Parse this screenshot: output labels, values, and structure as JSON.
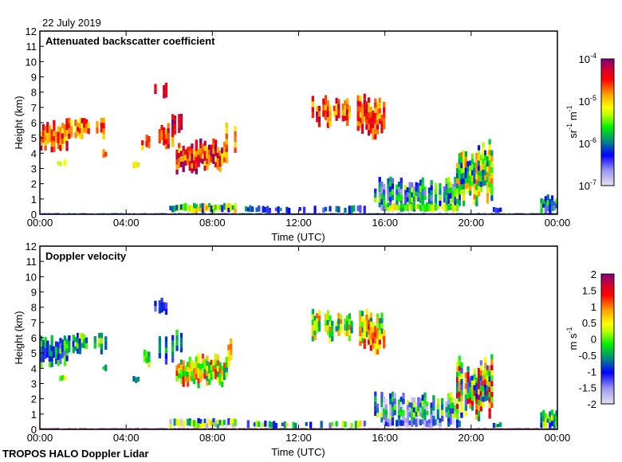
{
  "header": {
    "date": "22 July 2019"
  },
  "footer": {
    "instrument": "TROPOS HALO Doppler Lidar"
  },
  "chart_data": [
    {
      "type": "heatmap",
      "title": "Attenuated backscatter coefficient",
      "xlabel": "Time (UTC)",
      "ylabel": "Height (km)",
      "xlim": [
        0,
        24
      ],
      "ylim": [
        0,
        12
      ],
      "x_ticks": [
        0,
        4,
        8,
        12,
        16,
        20,
        24
      ],
      "x_tick_labels": [
        "00:00",
        "04:00",
        "08:00",
        "12:00",
        "16:00",
        "20:00",
        "00:00"
      ],
      "y_ticks": [
        0,
        1,
        2,
        3,
        4,
        5,
        6,
        7,
        8,
        9,
        10,
        11,
        12
      ],
      "y_tick_labels": [
        "0",
        "1",
        "2",
        "3",
        "4",
        "5",
        "6",
        "7",
        "8",
        "9",
        "10",
        "11",
        "12"
      ],
      "colorbar": {
        "scale": "log10",
        "range": [
          -7,
          -4
        ],
        "label": {
          "base1": "sr",
          "exp1": "-1",
          "base2": " m",
          "exp2": "-1"
        },
        "ticks": [
          {
            "value": -4,
            "base": "10",
            "exp": "-4"
          },
          {
            "value": -5,
            "base": "10",
            "exp": "-5"
          },
          {
            "value": -6,
            "base": "10",
            "exp": "-6"
          },
          {
            "value": -7,
            "base": "10",
            "exp": "-7"
          }
        ]
      },
      "features": [
        {
          "t": [
            0,
            24
          ],
          "h": [
            0,
            0.08
          ],
          "v": -6.3,
          "spread": 0.3,
          "density": 0.9
        },
        {
          "t": [
            0,
            1.3
          ],
          "h": [
            4.0,
            6.2
          ],
          "v": -4.6,
          "spread": 0.5,
          "density": 0.9
        },
        {
          "t": [
            1.2,
            3.1
          ],
          "h": [
            4.8,
            6.5
          ],
          "v": -4.7,
          "spread": 0.5,
          "density": 0.6
        },
        {
          "t": [
            0.8,
            1.2
          ],
          "h": [
            3.1,
            3.6
          ],
          "v": -5.2,
          "spread": 0.2,
          "density": 0.7
        },
        {
          "t": [
            2.9,
            3.1
          ],
          "h": [
            3.7,
            4.3
          ],
          "v": -4.8,
          "spread": 0.3,
          "density": 0.8
        },
        {
          "t": [
            4.6,
            5.0
          ],
          "h": [
            4.0,
            5.3
          ],
          "v": -4.7,
          "spread": 0.4,
          "density": 0.8
        },
        {
          "t": [
            4.3,
            4.5
          ],
          "h": [
            3.0,
            3.5
          ],
          "v": -5.2,
          "spread": 0.2,
          "density": 0.8
        },
        {
          "t": [
            5.3,
            5.8
          ],
          "h": [
            7.5,
            8.7
          ],
          "v": -4.4,
          "spread": 0.2,
          "density": 0.6
        },
        {
          "t": [
            5.5,
            6.1
          ],
          "h": [
            4.2,
            6.2
          ],
          "v": -4.6,
          "spread": 0.4,
          "density": 0.6
        },
        {
          "t": [
            6.1,
            6.5
          ],
          "h": [
            5.0,
            6.6
          ],
          "v": -4.3,
          "spread": 0.3,
          "density": 0.8
        },
        {
          "t": [
            6.2,
            8.6
          ],
          "h": [
            2.6,
            5.0
          ],
          "v": -4.5,
          "spread": 0.6,
          "density": 0.85
        },
        {
          "t": [
            8.6,
            9.0
          ],
          "h": [
            4.0,
            6.0
          ],
          "v": -4.8,
          "spread": 0.3,
          "density": 0.4
        },
        {
          "t": [
            6.0,
            9.0
          ],
          "h": [
            0.05,
            0.75
          ],
          "v": -5.6,
          "spread": 0.8,
          "density": 0.95
        },
        {
          "t": [
            9.5,
            15.0
          ],
          "h": [
            0.05,
            0.6
          ],
          "v": -6.2,
          "spread": 0.4,
          "density": 0.6
        },
        {
          "t": [
            12.6,
            15.8
          ],
          "h": [
            5.6,
            7.9
          ],
          "v": -4.6,
          "spread": 0.5,
          "density": 0.65
        },
        {
          "t": [
            14.7,
            15.9
          ],
          "h": [
            4.7,
            7.4
          ],
          "v": -4.6,
          "spread": 0.4,
          "density": 0.85
        },
        {
          "t": [
            15.5,
            19.5
          ],
          "h": [
            0.1,
            2.5
          ],
          "v": -6.0,
          "spread": 0.7,
          "density": 0.7
        },
        {
          "t": [
            16.0,
            19.5
          ],
          "h": [
            0.15,
            0.8
          ],
          "v": -5.4,
          "spread": 0.5,
          "density": 0.9
        },
        {
          "t": [
            19.3,
            21.0
          ],
          "h": [
            0.3,
            5.0
          ],
          "v": -5.5,
          "spread": 0.8,
          "density": 0.8
        },
        {
          "t": [
            21.0,
            21.4
          ],
          "h": [
            0.05,
            0.5
          ],
          "v": -6.2,
          "spread": 0.3,
          "density": 0.8
        },
        {
          "t": [
            23.2,
            24.0
          ],
          "h": [
            0.05,
            1.3
          ],
          "v": -6.0,
          "spread": 0.6,
          "density": 0.7
        }
      ]
    },
    {
      "type": "heatmap",
      "title": "Doppler velocity",
      "xlabel": "Time (UTC)",
      "ylabel": "Height (km)",
      "xlim": [
        0,
        24
      ],
      "ylim": [
        0,
        12
      ],
      "x_ticks": [
        0,
        4,
        8,
        12,
        16,
        20,
        24
      ],
      "x_tick_labels": [
        "00:00",
        "04:00",
        "08:00",
        "12:00",
        "16:00",
        "20:00",
        "00:00"
      ],
      "y_ticks": [
        0,
        1,
        2,
        3,
        4,
        5,
        6,
        7,
        8,
        9,
        10,
        11,
        12
      ],
      "y_tick_labels": [
        "0",
        "1",
        "2",
        "3",
        "4",
        "5",
        "6",
        "7",
        "8",
        "9",
        "10",
        "11",
        "12"
      ],
      "colorbar": {
        "scale": "linear",
        "range": [
          -2,
          2
        ],
        "label": {
          "base1": "m",
          "exp1": "",
          "base2": " s",
          "exp2": "-1"
        },
        "ticks": [
          {
            "value": 2,
            "base": "2",
            "exp": ""
          },
          {
            "value": 1.5,
            "base": "1.5",
            "exp": ""
          },
          {
            "value": 1,
            "base": "1",
            "exp": ""
          },
          {
            "value": 0.5,
            "base": "0.5",
            "exp": ""
          },
          {
            "value": 0,
            "base": "0",
            "exp": ""
          },
          {
            "value": -0.5,
            "base": "-0.5",
            "exp": ""
          },
          {
            "value": -1,
            "base": "-1",
            "exp": ""
          },
          {
            "value": -1.5,
            "base": "-1.5",
            "exp": ""
          },
          {
            "value": -2,
            "base": "-2",
            "exp": ""
          }
        ]
      },
      "features": [
        {
          "t": [
            0,
            24
          ],
          "h": [
            0,
            0.08
          ],
          "v": 1.9,
          "spread": 0.1,
          "density": 0.95
        },
        {
          "t": [
            0,
            1.3
          ],
          "h": [
            4.0,
            6.2
          ],
          "v": -0.6,
          "spread": 0.8,
          "density": 0.9
        },
        {
          "t": [
            1.2,
            3.1
          ],
          "h": [
            4.8,
            6.5
          ],
          "v": -0.3,
          "spread": 0.8,
          "density": 0.6
        },
        {
          "t": [
            0.8,
            1.2
          ],
          "h": [
            3.1,
            3.6
          ],
          "v": 0.2,
          "spread": 0.4,
          "density": 0.7
        },
        {
          "t": [
            2.9,
            3.1
          ],
          "h": [
            3.7,
            4.3
          ],
          "v": -0.5,
          "spread": 0.4,
          "density": 0.8
        },
        {
          "t": [
            4.6,
            5.0
          ],
          "h": [
            4.0,
            5.3
          ],
          "v": -0.2,
          "spread": 0.6,
          "density": 0.8
        },
        {
          "t": [
            4.3,
            4.5
          ],
          "h": [
            3.0,
            3.5
          ],
          "v": -0.8,
          "spread": 0.3,
          "density": 0.8
        },
        {
          "t": [
            5.3,
            5.8
          ],
          "h": [
            7.5,
            8.7
          ],
          "v": -1.1,
          "spread": 0.4,
          "density": 0.6
        },
        {
          "t": [
            5.5,
            6.1
          ],
          "h": [
            4.2,
            6.2
          ],
          "v": -0.8,
          "spread": 0.6,
          "density": 0.6
        },
        {
          "t": [
            6.1,
            6.5
          ],
          "h": [
            5.0,
            6.6
          ],
          "v": -0.5,
          "spread": 0.5,
          "density": 0.8
        },
        {
          "t": [
            6.2,
            8.6
          ],
          "h": [
            2.6,
            5.0
          ],
          "v": 0.4,
          "spread": 1.0,
          "density": 0.85
        },
        {
          "t": [
            8.6,
            9.0
          ],
          "h": [
            4.0,
            6.0
          ],
          "v": 0.8,
          "spread": 0.4,
          "density": 0.4
        },
        {
          "t": [
            6.0,
            9.0
          ],
          "h": [
            0.05,
            0.75
          ],
          "v": -0.6,
          "spread": 1.4,
          "density": 0.95
        },
        {
          "t": [
            9.5,
            15.0
          ],
          "h": [
            0.05,
            0.6
          ],
          "v": -0.4,
          "spread": 1.2,
          "density": 0.6
        },
        {
          "t": [
            12.6,
            15.8
          ],
          "h": [
            5.6,
            7.9
          ],
          "v": 0.2,
          "spread": 0.9,
          "density": 0.65
        },
        {
          "t": [
            14.7,
            15.9
          ],
          "h": [
            4.7,
            7.4
          ],
          "v": 0.8,
          "spread": 0.7,
          "density": 0.85
        },
        {
          "t": [
            15.5,
            19.5
          ],
          "h": [
            0.1,
            2.5
          ],
          "v": -0.8,
          "spread": 1.2,
          "density": 0.7
        },
        {
          "t": [
            16.0,
            19.5
          ],
          "h": [
            0.1,
            0.8
          ],
          "v": -1.2,
          "spread": 0.8,
          "density": 0.9
        },
        {
          "t": [
            19.3,
            21.0
          ],
          "h": [
            0.3,
            5.0
          ],
          "v": 0.2,
          "spread": 1.6,
          "density": 0.8
        },
        {
          "t": [
            21.0,
            21.4
          ],
          "h": [
            0.05,
            0.5
          ],
          "v": -0.5,
          "spread": 0.6,
          "density": 0.8
        },
        {
          "t": [
            23.2,
            24.0
          ],
          "h": [
            0.05,
            1.3
          ],
          "v": -0.2,
          "spread": 1.0,
          "density": 0.7
        }
      ]
    }
  ]
}
